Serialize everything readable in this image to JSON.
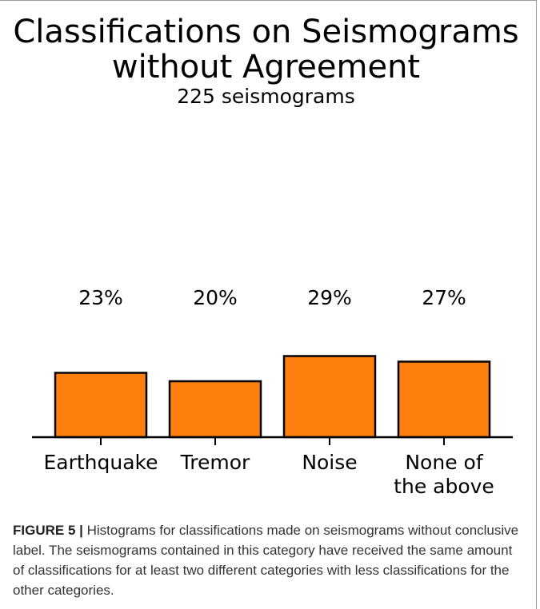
{
  "figure": {
    "label": "FIGURE 5 |",
    "caption": "Histograms for classifications made on seismograms without conclusive label. The seismograms contained in this category have received the same amount of classifications for at least two different categories with less classifications for the other categories."
  },
  "chart_data": {
    "type": "bar",
    "title_lines": [
      "Classifications on Seismograms",
      "without Agreement"
    ],
    "subtitle": "225 seismograms",
    "categories": [
      [
        "Earthquake"
      ],
      [
        "Tremor"
      ],
      [
        "Noise"
      ],
      [
        "None of",
        "the above"
      ]
    ],
    "values": [
      23,
      20,
      29,
      27
    ],
    "value_labels": [
      "23%",
      "20%",
      "29%",
      "27%"
    ],
    "bar_color": "#ff7f0e",
    "ylim": [
      0,
      100
    ],
    "xlabel": "",
    "ylabel": "",
    "grid": false,
    "legend": "none"
  }
}
